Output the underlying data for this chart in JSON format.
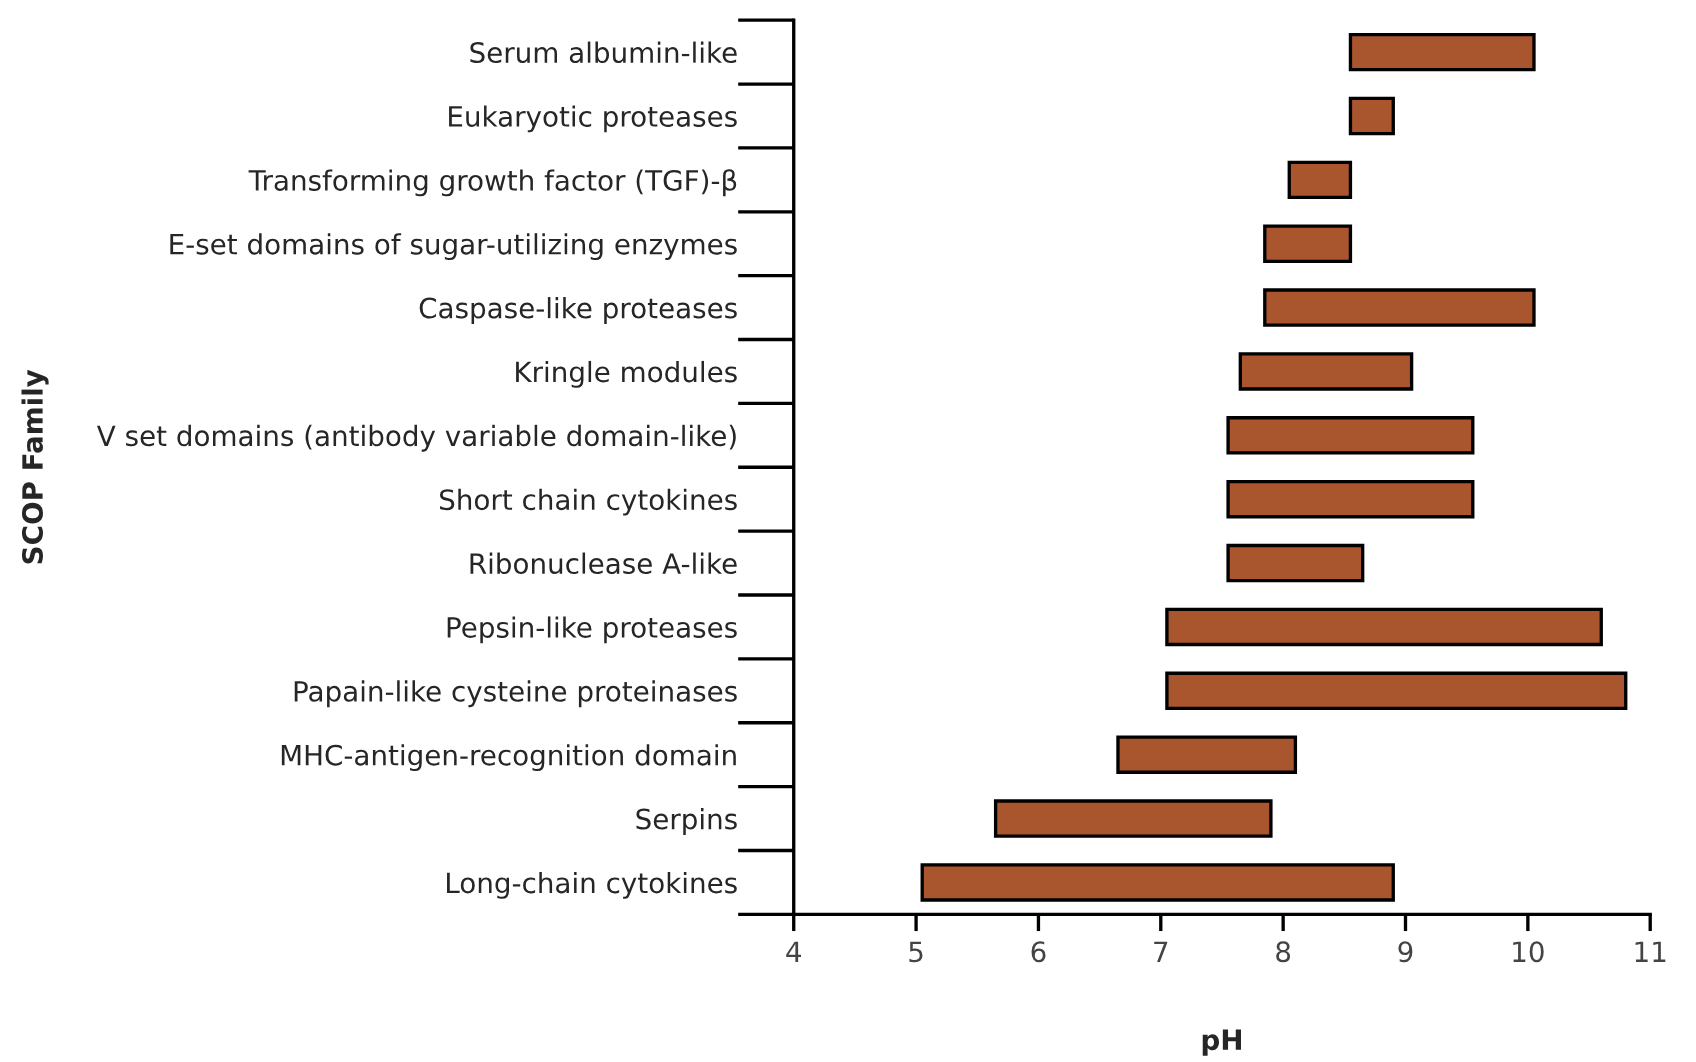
{
  "chart_data": {
    "type": "bar",
    "orientation": "horizontal",
    "xlabel": "pH",
    "ylabel": "SCOP Family",
    "categories": [
      "Serum albumin-like",
      "Eukaryotic proteases",
      "Transforming growth factor (TGF)-β",
      "E-set domains of sugar-utilizing enzymes",
      "Caspase-like proteases",
      "Kringle modules",
      "V set domains (antibody variable domain-like)",
      "Short chain cytokines",
      "Ribonuclease A-like",
      "Pepsin-like proteases",
      "Papain-like cysteine proteinases",
      "MHC-antigen-recognition domain",
      "Serpins",
      "Long-chain cytokines"
    ],
    "base": [
      8.55,
      8.55,
      8.05,
      7.85,
      7.85,
      7.65,
      7.55,
      7.55,
      7.55,
      7.05,
      7.05,
      6.65,
      5.65,
      5.05
    ],
    "values": [
      1.5,
      0.35,
      0.5,
      0.7,
      2.2,
      1.4,
      2.0,
      2.0,
      1.1,
      3.55,
      3.75,
      1.45,
      2.25,
      3.85
    ],
    "color": "#a9552e",
    "xlim": [
      4,
      11
    ],
    "xticks": [
      4,
      5,
      6,
      7,
      8,
      9,
      10,
      11
    ],
    "grid": false,
    "legend": false
  }
}
